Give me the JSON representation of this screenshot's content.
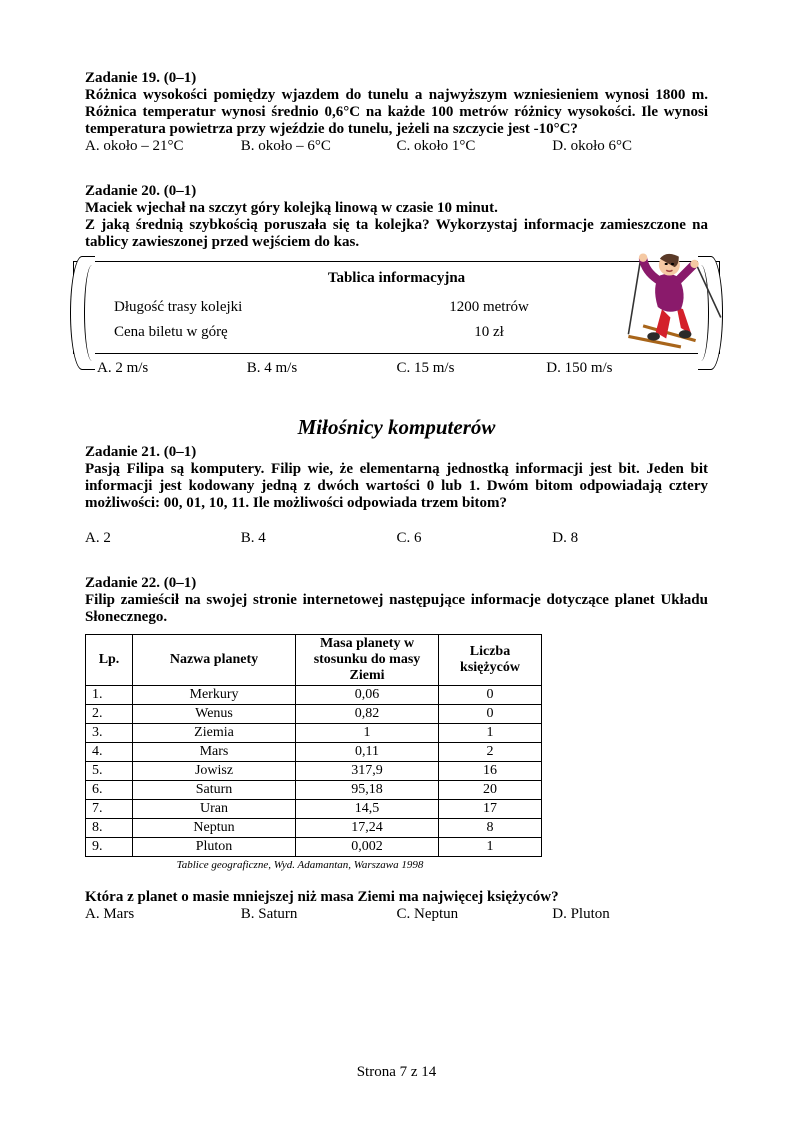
{
  "task19": {
    "title": "Zadanie 19. (0–1)",
    "text": "Różnica wysokości pomiędzy wjazdem do tunelu a najwyższym wzniesieniem wynosi 1800 m. Różnica temperatur wynosi średnio 0,6°C na każde 100 metrów różnicy wysokości. Ile wynosi temperatura powietrza przy wjeździe do tunelu, jeżeli na szczycie jest -10°C?",
    "A": "A. około – 21°C",
    "B": "B. około – 6°C",
    "C": "C. około 1°C",
    "D": "D. około 6°C"
  },
  "task20": {
    "title": "Zadanie 20. (0–1)",
    "line1": "Maciek wjechał na szczyt góry kolejką linową w czasie 10 minut.",
    "line2": "Z jaką średnią szybkością poruszała się ta kolejka? Wykorzystaj informacje zamieszczone na tablicy zawieszonej przed wejściem do kas.",
    "board_title": "Tablica informacyjna",
    "row1_label": "Długość trasy  kolejki",
    "row1_value": "1200 metrów",
    "row2_label": "Cena biletu w górę",
    "row2_value": "10 zł",
    "A": "A. 2 m/s",
    "B": "B. 4 m/s",
    "C": "C. 15 m/s",
    "D": "D. 150 m/s"
  },
  "section_title": "Miłośnicy komputerów",
  "task21": {
    "title": "Zadanie 21. (0–1)",
    "text": "Pasją Filipa są komputery. Filip wie, że elementarną jednostką informacji jest bit. Jeden bit informacji jest kodowany jedną z dwóch wartości 0 lub 1. Dwóm bitom odpowiadają cztery możliwości: 00, 01, 10, 11. Ile możliwości odpowiada trzem bitom?",
    "A": "A. 2",
    "B": "B. 4",
    "C": "C. 6",
    "D": "D. 8"
  },
  "task22": {
    "title": "Zadanie 22. (0–1)",
    "text": "Filip zamieścił na swojej stronie internetowej następujące informacje dotyczące planet Układu Słonecznego.",
    "headers": [
      "Lp.",
      "Nazwa planety",
      "Masa planety w stosunku do masy Ziemi",
      "Liczba księżyców"
    ],
    "rows": [
      [
        "1.",
        "Merkury",
        "0,06",
        "0"
      ],
      [
        "2.",
        "Wenus",
        "0,82",
        "0"
      ],
      [
        "3.",
        "Ziemia",
        "1",
        "1"
      ],
      [
        "4.",
        "Mars",
        "0,11",
        "2"
      ],
      [
        "5.",
        "Jowisz",
        "317,9",
        "16"
      ],
      [
        "6.",
        "Saturn",
        "95,18",
        "20"
      ],
      [
        "7.",
        "Uran",
        "14,5",
        "17"
      ],
      [
        "8.",
        "Neptun",
        "17,24",
        "8"
      ],
      [
        "9.",
        "Pluton",
        "0,002",
        "1"
      ]
    ],
    "source": "Tablice geograficzne, Wyd. Adamantan, Warszawa 1998",
    "question": "Która z planet o masie mniejszej niż masa Ziemi ma najwięcej księżyców?",
    "A": "A. Mars",
    "B": "B. Saturn",
    "C": "C. Neptun",
    "D": "D. Pluton"
  },
  "footer": "Strona 7 z 14",
  "skier_colors": {
    "jacket": "#8a1a6b",
    "pants": "#d4202a",
    "ski": "#a8651a",
    "boot": "#2a2a2a",
    "skin": "#f5c9a3",
    "hair": "#5a3a28"
  }
}
